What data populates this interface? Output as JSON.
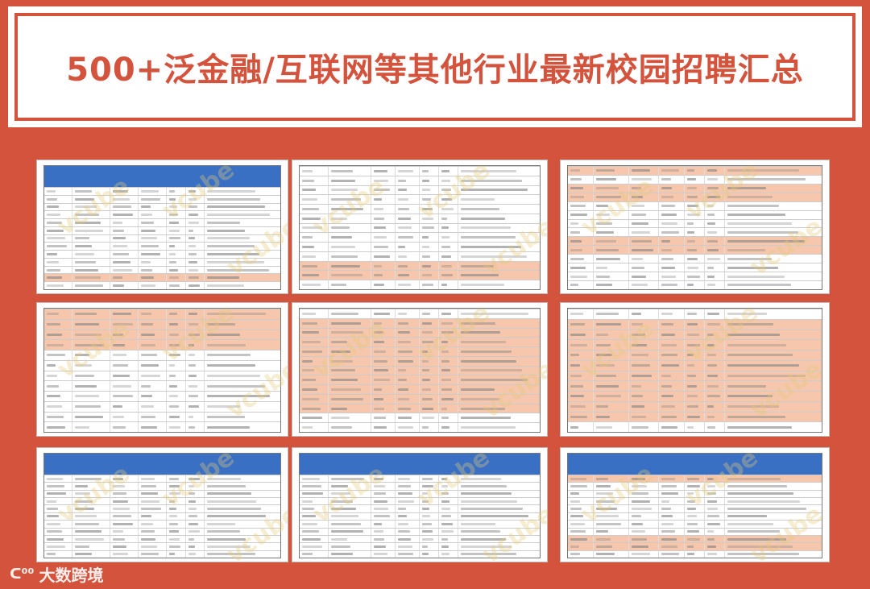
{
  "title": "500+泛金融/互联网等其他行业最新校园招聘汇总",
  "watermark": "vcube",
  "logo_text": "大数跨境",
  "colors": {
    "background": "#d4533d",
    "header_blue": "#3a70c4",
    "highlight_row": "#f6c7ad"
  },
  "sheets": [
    {
      "header": true,
      "rows": 13,
      "highlight": [
        11
      ]
    },
    {
      "header": false,
      "rows": 13,
      "highlight": [
        10,
        11
      ]
    },
    {
      "header": false,
      "rows": 14,
      "highlight": [
        0,
        2,
        3,
        8,
        9
      ]
    },
    {
      "header": false,
      "rows": 12,
      "highlight": [
        0,
        1,
        2,
        3
      ]
    },
    {
      "header": false,
      "rows": 13,
      "highlight": [
        1,
        2,
        3,
        4,
        5,
        6,
        7,
        8,
        9,
        10
      ]
    },
    {
      "header": false,
      "rows": 12,
      "highlight": [
        1,
        2,
        3,
        4,
        5,
        6,
        7,
        8,
        9,
        10
      ]
    },
    {
      "header": true,
      "rows": 11,
      "highlight": []
    },
    {
      "header": true,
      "rows": 11,
      "highlight": []
    },
    {
      "header": true,
      "rows": 11,
      "highlight": [
        0,
        8,
        9
      ]
    }
  ]
}
